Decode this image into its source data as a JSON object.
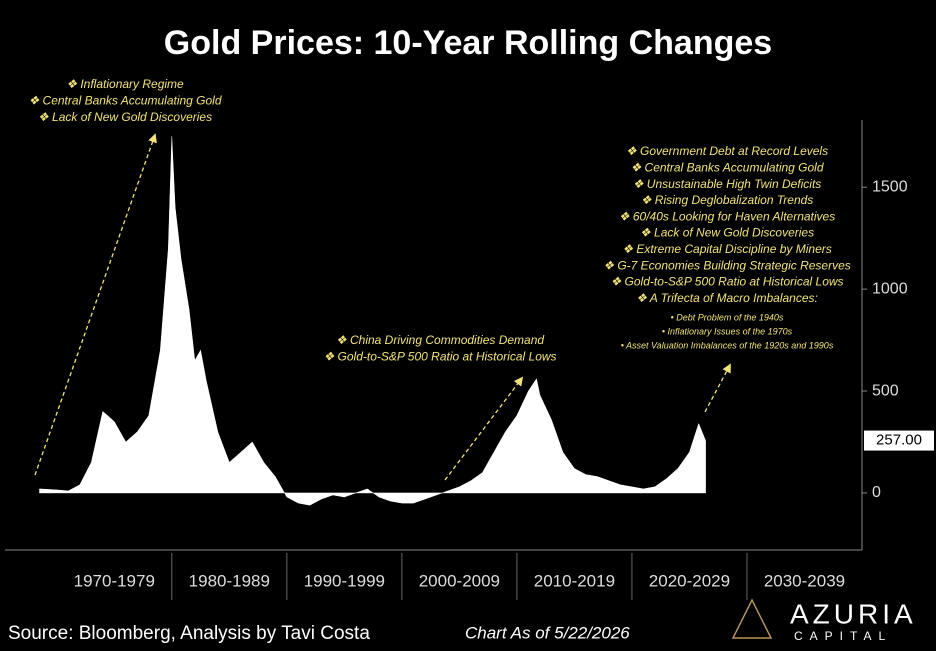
{
  "chart_data": {
    "type": "area",
    "title": "Gold Prices: 10-Year Rolling Changes",
    "color": "#ffffff",
    "xlim": [
      1965.5,
      2040
    ],
    "xticks": [
      {
        "value": 1975,
        "label": "1970-1979"
      },
      {
        "value": 1985,
        "label": "1980-1989"
      },
      {
        "value": 1995,
        "label": "1990-1999"
      },
      {
        "value": 2005,
        "label": "2000-2009"
      },
      {
        "value": 2015,
        "label": "2010-2019"
      },
      {
        "value": 2025,
        "label": "2020-2029"
      },
      {
        "value": 2035,
        "label": "2030-2039"
      }
    ],
    "ylim": [
      -280,
      1830
    ],
    "yticks": [
      0,
      500,
      1000,
      1500
    ],
    "x": [
      1968.5,
      1970,
      1971,
      1972,
      1973,
      1974,
      1975,
      1976,
      1977,
      1978,
      1979,
      1979.7,
      1980,
      1980.3,
      1980.8,
      1981.5,
      1982,
      1982.5,
      1983,
      1984,
      1985,
      1986,
      1987,
      1988,
      1989,
      1990,
      1991,
      1992,
      1993,
      1994,
      1995,
      1996,
      1997,
      1998,
      1999,
      2000,
      2001,
      2002,
      2003,
      2004,
      2005,
      2006,
      2007,
      2008,
      2009,
      2010,
      2011,
      2011.7,
      2012,
      2013,
      2014,
      2015,
      2016,
      2017,
      2018,
      2019,
      2020,
      2021,
      2022,
      2023,
      2024,
      2025,
      2025.8,
      2026.4
    ],
    "values": [
      20,
      15,
      10,
      40,
      150,
      400,
      350,
      250,
      300,
      380,
      700,
      1200,
      1750,
      1400,
      1150,
      900,
      650,
      700,
      550,
      300,
      150,
      200,
      250,
      150,
      80,
      -20,
      -50,
      -60,
      -30,
      -10,
      -20,
      0,
      20,
      -20,
      -40,
      -50,
      -50,
      -30,
      -10,
      10,
      30,
      60,
      100,
      200,
      300,
      380,
      500,
      560,
      480,
      360,
      200,
      120,
      90,
      80,
      60,
      40,
      30,
      20,
      30,
      70,
      120,
      200,
      340,
      257
    ],
    "last_value_marker": {
      "value": 257,
      "label": "257.00"
    },
    "annotations": [
      {
        "lines": [
          "❖ Inflationary Regime",
          "❖ Central Banks Accumulating Gold",
          "❖ Lack of New Gold Discoveries"
        ]
      },
      {
        "lines": [
          "❖ China Driving Commodities Demand",
          "❖ Gold-to-S&P 500 Ratio at Historical Lows"
        ]
      },
      {
        "lines": [
          "❖ Government Debt at Record Levels",
          "❖ Central Banks Accumulating Gold",
          "❖ Unsustainable High Twin Deficits",
          "❖ Rising Deglobalization Trends",
          "❖ 60/40s Looking for Haven Alternatives",
          "❖ Lack of New Gold Discoveries",
          "❖ Extreme Capital Discipline by Miners",
          "❖ G-7 Economies Building Strategic Reserves",
          "❖ Gold-to-S&P 500 Ratio at Historical Lows",
          "❖ A Trifecta of Macro Imbalances:"
        ],
        "sublines": [
          "• Debt Problem of the 1940s",
          "• Inflationary Issues of the 1970s",
          "• Asset Valuation Imbalances of the 1920s and 1990s"
        ]
      }
    ],
    "source": "Source: Bloomberg, Analysis by Tavi Costa",
    "as_of": "Chart As of 5/22/2026",
    "logo": {
      "name": "AZURIA",
      "tagline": "CAPITAL"
    }
  }
}
